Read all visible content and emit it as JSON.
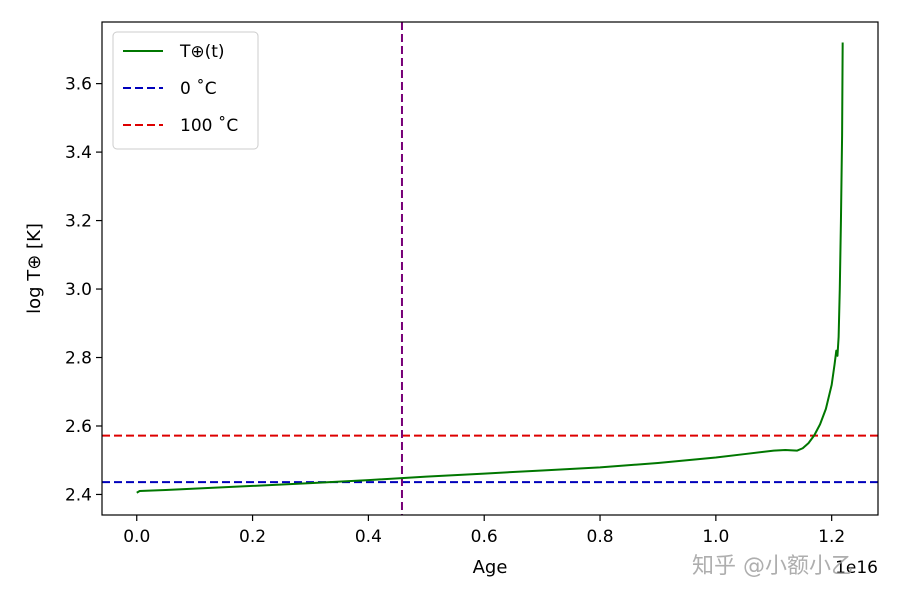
{
  "chart_data": {
    "type": "line",
    "title": "",
    "xlabel": "Age",
    "ylabel": "log T⊕ [K]",
    "xlim": [
      -0.06,
      1.28
    ],
    "ylim": [
      2.34,
      3.78
    ],
    "x_offset_label": "1e16",
    "xticks": [
      0.0,
      0.2,
      0.4,
      0.6,
      0.8,
      1.0,
      1.2
    ],
    "yticks": [
      2.4,
      2.6,
      2.8,
      3.0,
      3.2,
      3.4,
      3.6
    ],
    "xtick_labels": [
      "0.0",
      "0.2",
      "0.4",
      "0.6",
      "0.8",
      "1.0",
      "1.2"
    ],
    "ytick_labels": [
      "2.4",
      "2.6",
      "2.8",
      "3.0",
      "3.2",
      "3.4",
      "3.6"
    ],
    "grid": false,
    "legend_position": "top-left",
    "series": [
      {
        "name": "T⊕(t)",
        "color": "#007700",
        "style": "solid",
        "x": [
          0.0,
          0.005,
          0.05,
          0.1,
          0.2,
          0.3,
          0.4,
          0.5,
          0.6,
          0.7,
          0.8,
          0.9,
          1.0,
          1.05,
          1.1,
          1.12,
          1.14,
          1.15,
          1.16,
          1.17,
          1.18,
          1.19,
          1.2,
          1.205,
          1.208,
          1.21,
          1.212,
          1.214,
          1.216,
          1.218,
          1.219
        ],
        "y": [
          2.405,
          2.41,
          2.413,
          2.417,
          2.425,
          2.433,
          2.442,
          2.452,
          2.461,
          2.47,
          2.479,
          2.492,
          2.508,
          2.518,
          2.528,
          2.53,
          2.528,
          2.535,
          2.55,
          2.573,
          2.605,
          2.65,
          2.72,
          2.78,
          2.82,
          2.805,
          2.86,
          3.0,
          3.2,
          3.45,
          3.72
        ]
      },
      {
        "name": "0 ˚C",
        "color": "#0000bb",
        "style": "dashed",
        "y_constant": 2.436
      },
      {
        "name": "100 ˚C",
        "color": "#dd0000",
        "style": "dashed",
        "y_constant": 2.572
      }
    ],
    "vertical_lines": [
      {
        "x": 0.458,
        "color": "#770077",
        "style": "dashed"
      }
    ]
  },
  "watermark": "知乎 @小额小乙"
}
